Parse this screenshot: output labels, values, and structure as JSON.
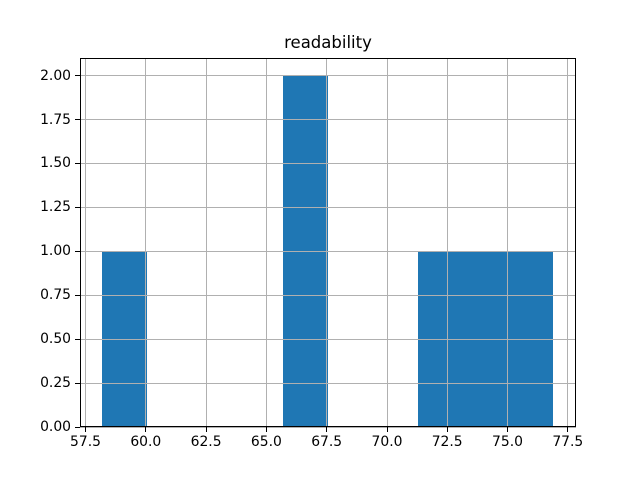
{
  "figure": {
    "background_color": "#ffffff"
  },
  "chart_data": {
    "type": "bar",
    "subtype": "histogram",
    "title": "readability",
    "xlabel": "",
    "ylabel": "",
    "bar_color": "#1f77b4",
    "grid_color": "#b0b0b0",
    "spine_color": "#000000",
    "text_color": "#000000",
    "grid": true,
    "grid_above_bars": true,
    "legend": false,
    "bin_edges": [
      58.2,
      60.07,
      61.94,
      63.81,
      65.68,
      67.55,
      69.42,
      71.29,
      73.16,
      75.03,
      76.9
    ],
    "counts": [
      1,
      0,
      0,
      0,
      2,
      0,
      0,
      1,
      1,
      1
    ],
    "xlim": [
      57.27,
      77.84
    ],
    "ylim": [
      0,
      2.1
    ],
    "xticks": [
      57.5,
      60.0,
      62.5,
      65.0,
      67.5,
      70.0,
      72.5,
      75.0,
      77.5
    ],
    "xtick_labels": [
      "57.5",
      "60.0",
      "62.5",
      "65.0",
      "67.5",
      "70.0",
      "72.5",
      "75.0",
      "77.5"
    ],
    "yticks": [
      0.0,
      0.25,
      0.5,
      0.75,
      1.0,
      1.25,
      1.5,
      1.75,
      2.0
    ],
    "ytick_labels": [
      "0.00",
      "0.25",
      "0.50",
      "0.75",
      "1.00",
      "1.25",
      "1.50",
      "1.75",
      "2.00"
    ]
  }
}
